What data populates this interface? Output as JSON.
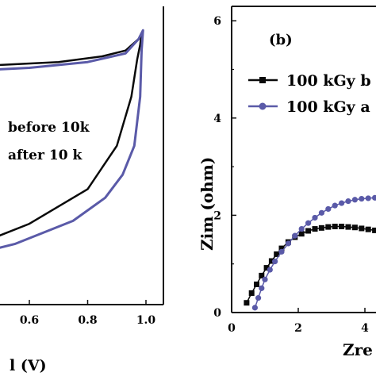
{
  "colors": {
    "black_series": "#0a0a0a",
    "blue_series": "#5a5aa8",
    "axis": "#111111"
  },
  "chart_data": [
    {
      "type": "line",
      "panel": "left",
      "xlabel": "l (V)",
      "xlim": [
        0.2,
        1.1
      ],
      "x_ticks": [
        "0.6",
        "0.8",
        "1.0"
      ],
      "legend": [
        "before 10k",
        "after 10 k"
      ],
      "series": [
        {
          "name": "before 10k",
          "color": "#0a0a0a",
          "x": [
            0.2,
            0.5,
            0.7,
            0.85,
            0.93,
            0.975,
            0.985,
            0.98,
            0.97,
            0.95,
            0.9,
            0.8,
            0.6,
            0.4,
            0.2
          ],
          "y": [
            0.82,
            0.83,
            0.84,
            0.86,
            0.88,
            0.92,
            0.94,
            0.9,
            0.85,
            0.72,
            0.55,
            0.4,
            0.28,
            0.2,
            0.13
          ]
        },
        {
          "name": "after 10 k",
          "color": "#5a5aa8",
          "x": [
            0.2,
            0.4,
            0.6,
            0.8,
            0.93,
            0.975,
            0.99,
            0.985,
            0.98,
            0.96,
            0.92,
            0.86,
            0.75,
            0.55,
            0.35,
            0.2
          ],
          "y": [
            0.82,
            0.81,
            0.82,
            0.84,
            0.87,
            0.92,
            0.95,
            0.88,
            0.72,
            0.55,
            0.45,
            0.37,
            0.29,
            0.21,
            0.16,
            0.14
          ]
        }
      ]
    },
    {
      "type": "line",
      "panel": "right",
      "panel_label": "(b)",
      "ylabel": "Zim (ohm)",
      "xlabel": "Zre",
      "xlim": [
        0,
        5
      ],
      "ylim": [
        0,
        6
      ],
      "x_ticks": [
        "0",
        "2",
        "4"
      ],
      "y_ticks": [
        "0",
        "2",
        "4",
        "6"
      ],
      "legend": [
        "100 kGy b",
        "100 kGy a"
      ],
      "series": [
        {
          "name": "100 kGy b",
          "color": "#0a0a0a",
          "marker": "square",
          "x": [
            0.45,
            0.6,
            0.75,
            0.9,
            1.05,
            1.2,
            1.35,
            1.5,
            1.7,
            1.9,
            2.1,
            2.3,
            2.5,
            2.7,
            2.9,
            3.1,
            3.3,
            3.5,
            3.7,
            3.9,
            4.1,
            4.3,
            4.5,
            4.7,
            4.9
          ],
          "y": [
            0.2,
            0.4,
            0.58,
            0.76,
            0.92,
            1.06,
            1.2,
            1.32,
            1.45,
            1.55,
            1.62,
            1.68,
            1.72,
            1.74,
            1.76,
            1.77,
            1.77,
            1.76,
            1.75,
            1.73,
            1.71,
            1.69,
            1.67,
            1.64,
            1.62
          ]
        },
        {
          "name": "100 kGy a",
          "color": "#5a5aa8",
          "marker": "circle",
          "x": [
            0.7,
            0.8,
            0.9,
            1.0,
            1.15,
            1.3,
            1.5,
            1.7,
            1.9,
            2.1,
            2.3,
            2.5,
            2.7,
            2.9,
            3.1,
            3.3,
            3.5,
            3.7,
            3.9,
            4.1,
            4.3,
            4.5,
            4.7,
            4.9
          ],
          "y": [
            0.1,
            0.3,
            0.5,
            0.68,
            0.88,
            1.05,
            1.25,
            1.42,
            1.58,
            1.72,
            1.84,
            1.95,
            2.05,
            2.13,
            2.2,
            2.25,
            2.29,
            2.32,
            2.34,
            2.35,
            2.36,
            2.36,
            2.35,
            2.33
          ]
        }
      ]
    }
  ]
}
